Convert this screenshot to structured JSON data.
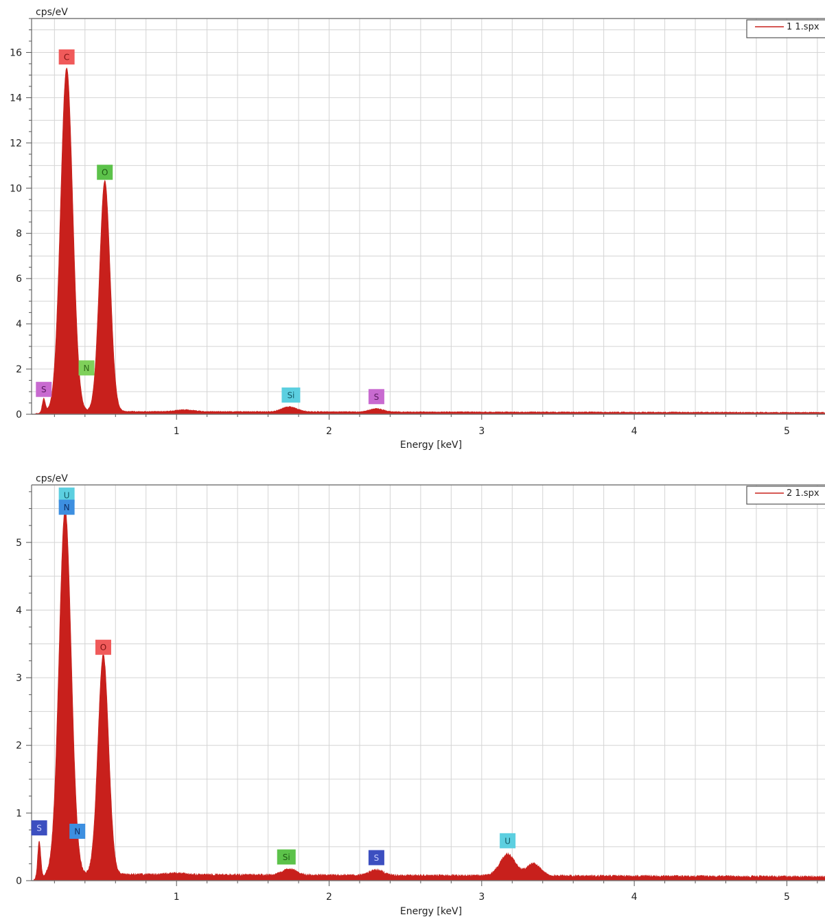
{
  "chart_data": [
    {
      "type": "area",
      "ylabel": "cps/eV",
      "xlabel": "Energy [keV]",
      "xlim": [
        0.05,
        5.25
      ],
      "ylim": [
        0,
        17.5
      ],
      "x_ticks": [
        1,
        2,
        3,
        4,
        5
      ],
      "y_ticks": [
        0,
        2,
        4,
        6,
        8,
        10,
        12,
        14,
        16
      ],
      "grid": true,
      "legend": {
        "placement": "top-right",
        "label": "1 1.spx"
      },
      "series": [
        {
          "name": "1 1.spx",
          "color": "#c8201c",
          "background": 0.12,
          "peaks": [
            {
              "x": 0.13,
              "h": 0.6,
              "w": 0.01
            },
            {
              "x": 0.28,
              "h": 15.2,
              "w": 0.04
            },
            {
              "x": 0.53,
              "h": 10.2,
              "w": 0.035
            },
            {
              "x": 1.05,
              "h": 0.08,
              "w": 0.06
            },
            {
              "x": 1.74,
              "h": 0.22,
              "w": 0.05
            },
            {
              "x": 2.31,
              "h": 0.14,
              "w": 0.045
            }
          ]
        }
      ],
      "peak_labels": [
        {
          "text": "C",
          "x": 0.28,
          "y": 15.8,
          "bg": "#f05a5a",
          "fg": "#7a1010"
        },
        {
          "text": "O",
          "x": 0.53,
          "y": 10.7,
          "bg": "#5cc24a",
          "fg": "#1d5a12"
        },
        {
          "text": "N",
          "x": 0.41,
          "y": 2.05,
          "bg": "#7fd05a",
          "fg": "#2f6a1a"
        },
        {
          "text": "S",
          "x": 0.13,
          "y": 1.1,
          "bg": "#c86ad0",
          "fg": "#5a1a60"
        },
        {
          "text": "Si",
          "x": 1.75,
          "y": 0.85,
          "bg": "#5ccfe0",
          "fg": "#135a66"
        },
        {
          "text": "S",
          "x": 2.31,
          "y": 0.78,
          "bg": "#c86ad0",
          "fg": "#5a1a60"
        }
      ]
    },
    {
      "type": "area",
      "ylabel": "cps/eV",
      "xlabel": "Energy [keV]",
      "xlim": [
        0.05,
        5.25
      ],
      "ylim": [
        0,
        5.85
      ],
      "x_ticks": [
        1,
        2,
        3,
        4,
        5
      ],
      "y_ticks": [
        0,
        1,
        2,
        3,
        4,
        5
      ],
      "grid": true,
      "legend": {
        "placement": "top-right",
        "label": "2 1.spx"
      },
      "series": [
        {
          "name": "2 1.spx",
          "color": "#c8201c",
          "background": 0.09,
          "peaks": [
            {
              "x": 0.1,
              "h": 0.55,
              "w": 0.01
            },
            {
              "x": 0.27,
              "h": 5.4,
              "w": 0.04
            },
            {
              "x": 0.52,
              "h": 3.25,
              "w": 0.035
            },
            {
              "x": 1.0,
              "h": 0.02,
              "w": 0.06
            },
            {
              "x": 1.74,
              "h": 0.09,
              "w": 0.045
            },
            {
              "x": 2.31,
              "h": 0.08,
              "w": 0.045
            },
            {
              "x": 3.17,
              "h": 0.32,
              "w": 0.05
            },
            {
              "x": 3.34,
              "h": 0.18,
              "w": 0.045
            }
          ]
        }
      ],
      "peak_labels": [
        {
          "text": "U",
          "x": 0.28,
          "y": 5.7,
          "bg": "#5ccfe0",
          "fg": "#135a66"
        },
        {
          "text": "N",
          "x": 0.28,
          "y": 5.52,
          "bg": "#3d8fe0",
          "fg": "#0f2f66"
        },
        {
          "text": "O",
          "x": 0.52,
          "y": 3.45,
          "bg": "#f05a5a",
          "fg": "#7a1010"
        },
        {
          "text": "S",
          "x": 0.1,
          "y": 0.78,
          "bg": "#3c4fc0",
          "fg": "#c8d0ff"
        },
        {
          "text": "N",
          "x": 0.35,
          "y": 0.73,
          "bg": "#3d8fe0",
          "fg": "#0f2f66"
        },
        {
          "text": "Si",
          "x": 1.72,
          "y": 0.35,
          "bg": "#5cc24a",
          "fg": "#1d5a12"
        },
        {
          "text": "S",
          "x": 2.31,
          "y": 0.34,
          "bg": "#3c4fc0",
          "fg": "#c8d0ff"
        },
        {
          "text": "U",
          "x": 3.17,
          "y": 0.59,
          "bg": "#5ccfe0",
          "fg": "#135a66"
        }
      ]
    }
  ]
}
